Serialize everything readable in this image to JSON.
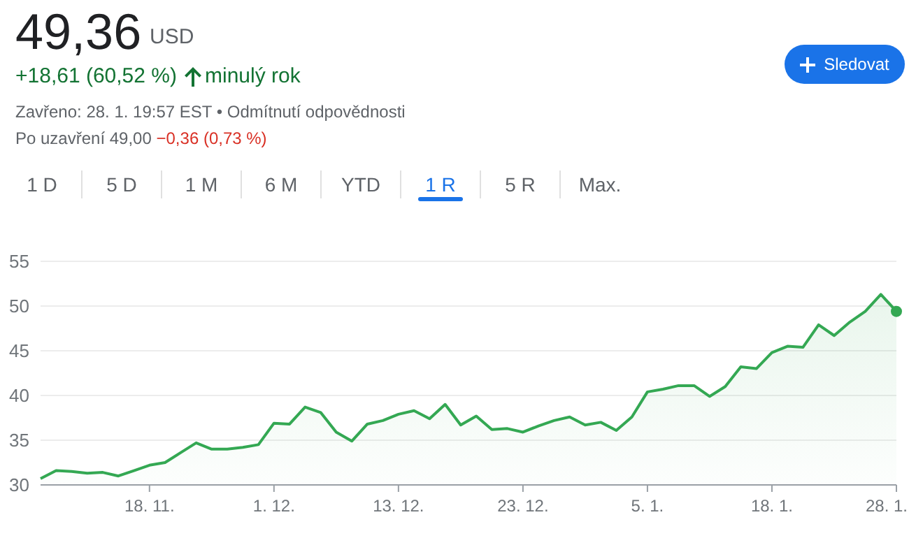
{
  "chart_data": {
    "type": "area",
    "title": "49,36",
    "subtitle": "USD",
    "annotations": [
      "+18,61 (60,52 %)",
      "minulý rok",
      "Zavřeno: 28. 1. 19:57 EST • Odmítnutí odpovědnosti",
      "Po uzavření 49,00",
      "−0,36 (0,73 %)",
      "Sledovat",
      "1 D",
      "5 D",
      "1 M",
      "6 M",
      "YTD",
      "1 R",
      "5 R",
      "Max."
    ],
    "categories": [
      null,
      null,
      null,
      null,
      null,
      null,
      null,
      "18. 11.",
      null,
      null,
      null,
      null,
      null,
      null,
      null,
      "1. 12.",
      null,
      null,
      null,
      null,
      null,
      null,
      null,
      "13. 12.",
      null,
      null,
      null,
      null,
      null,
      null,
      null,
      "23. 12.",
      null,
      null,
      null,
      null,
      null,
      null,
      null,
      "5. 1.",
      null,
      null,
      null,
      null,
      null,
      null,
      null,
      "18. 1.",
      null,
      null,
      null,
      null,
      null,
      null,
      null,
      "28. 1."
    ],
    "series": [
      {
        "color": "#34a853",
        "values": [
          30.7,
          31.6,
          31.5,
          31.3,
          31.4,
          31.0,
          31.6,
          32.2,
          32.5,
          33.6,
          34.7,
          34.0,
          34.0,
          34.2,
          34.5,
          36.9,
          36.8,
          38.7,
          38.1,
          35.9,
          34.9,
          36.8,
          37.2,
          37.9,
          38.3,
          37.4,
          39.0,
          36.7,
          37.7,
          36.2,
          36.3,
          35.9,
          36.6,
          37.2,
          37.6,
          36.7,
          37.0,
          36.1,
          37.6,
          40.4,
          40.7,
          41.1,
          41.1,
          39.9,
          41.0,
          43.2,
          43.0,
          44.8,
          45.5,
          45.4,
          47.9,
          46.7,
          48.2,
          49.4,
          51.3,
          49.4
        ]
      }
    ],
    "ylim": [
      30,
      55
    ],
    "yticks": [
      30,
      35,
      40,
      45,
      50,
      55
    ],
    "grid": "y"
  }
}
